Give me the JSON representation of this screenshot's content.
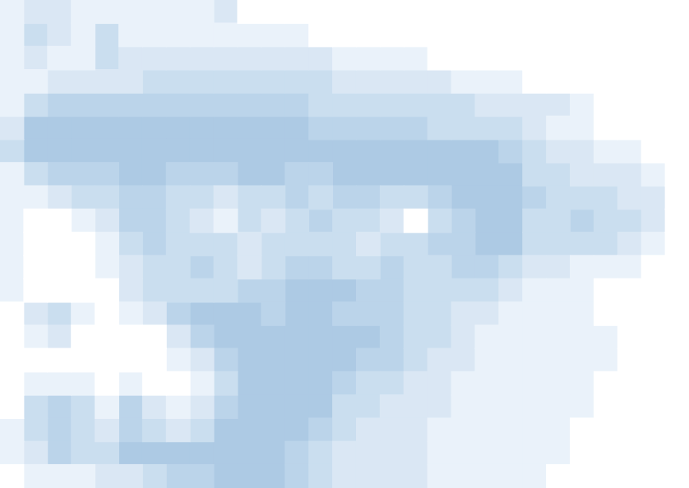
{
  "chart_data": {
    "type": "contour",
    "levels": [
      0,
      1,
      2,
      3,
      4,
      5
    ],
    "colors": [
      "#ffffff",
      "#eaf2fa",
      "#dae7f4",
      "#cadeef",
      "#bbd4ea",
      "#adcae4"
    ],
    "xlim": [
      -0.5,
      28.5
    ],
    "ylim": [
      -0.5,
      20.5
    ],
    "tick_labels": false,
    "cells": [
      [
        1,
        2,
        2,
        1,
        1,
        1,
        1,
        1,
        1,
        2,
        0,
        0,
        0,
        0,
        0,
        0,
        0,
        0,
        0,
        0,
        0,
        0,
        0,
        0,
        0,
        0,
        0,
        0,
        0
      ],
      [
        1,
        3,
        2,
        1,
        3,
        1,
        1,
        1,
        1,
        1,
        1,
        1,
        1,
        0,
        0,
        0,
        0,
        0,
        0,
        0,
        0,
        0,
        0,
        0,
        0,
        0,
        0,
        0,
        0
      ],
      [
        1,
        2,
        1,
        1,
        3,
        2,
        2,
        2,
        2,
        2,
        2,
        2,
        2,
        2,
        1,
        1,
        1,
        1,
        0,
        0,
        0,
        0,
        0,
        0,
        0,
        0,
        0,
        0,
        0
      ],
      [
        1,
        1,
        2,
        2,
        2,
        2,
        3,
        3,
        3,
        3,
        3,
        3,
        3,
        3,
        2,
        2,
        2,
        2,
        2,
        1,
        1,
        1,
        0,
        0,
        0,
        0,
        0,
        0,
        0
      ],
      [
        1,
        3,
        4,
        4,
        4,
        4,
        4,
        4,
        4,
        4,
        4,
        4,
        4,
        3,
        3,
        3,
        3,
        3,
        3,
        3,
        2,
        2,
        2,
        2,
        1,
        0,
        0,
        0,
        0
      ],
      [
        2,
        5,
        5,
        5,
        5,
        5,
        5,
        5,
        5,
        5,
        5,
        5,
        5,
        4,
        4,
        4,
        4,
        4,
        3,
        3,
        3,
        3,
        2,
        1,
        1,
        0,
        0,
        0,
        0
      ],
      [
        3,
        5,
        5,
        5,
        5,
        5,
        5,
        5,
        5,
        5,
        5,
        5,
        5,
        5,
        5,
        5,
        5,
        5,
        5,
        5,
        5,
        4,
        3,
        2,
        2,
        1,
        1,
        0,
        0
      ],
      [
        1,
        3,
        4,
        4,
        4,
        5,
        5,
        4,
        4,
        4,
        5,
        5,
        4,
        4,
        5,
        5,
        5,
        5,
        5,
        5,
        5,
        5,
        3,
        3,
        2,
        2,
        2,
        1,
        0
      ],
      [
        1,
        1,
        2,
        3,
        3,
        4,
        4,
        3,
        3,
        2,
        3,
        3,
        4,
        3,
        4,
        4,
        3,
        3,
        4,
        5,
        5,
        5,
        4,
        3,
        3,
        3,
        2,
        2,
        0
      ],
      [
        1,
        0,
        0,
        1,
        2,
        4,
        4,
        3,
        2,
        1,
        3,
        2,
        3,
        4,
        3,
        3,
        2,
        0,
        3,
        4,
        5,
        5,
        3,
        3,
        4,
        3,
        3,
        2,
        0
      ],
      [
        1,
        0,
        0,
        0,
        1,
        3,
        4,
        3,
        3,
        3,
        2,
        3,
        3,
        3,
        3,
        2,
        3,
        3,
        4,
        4,
        5,
        5,
        3,
        3,
        3,
        3,
        2,
        1,
        0
      ],
      [
        1,
        0,
        0,
        0,
        1,
        2,
        3,
        3,
        4,
        3,
        2,
        3,
        4,
        4,
        3,
        3,
        4,
        3,
        3,
        4,
        4,
        3,
        2,
        2,
        1,
        1,
        1,
        0,
        0
      ],
      [
        1,
        0,
        0,
        0,
        0,
        2,
        3,
        3,
        3,
        3,
        4,
        4,
        5,
        5,
        5,
        4,
        4,
        3,
        3,
        3,
        3,
        2,
        1,
        1,
        1,
        0,
        0,
        0,
        0
      ],
      [
        0,
        2,
        3,
        1,
        0,
        1,
        2,
        4,
        5,
        5,
        5,
        4,
        5,
        5,
        4,
        4,
        4,
        3,
        3,
        2,
        2,
        1,
        1,
        1,
        1,
        0,
        0,
        0,
        0
      ],
      [
        0,
        1,
        2,
        0,
        0,
        0,
        0,
        2,
        4,
        5,
        5,
        5,
        5,
        5,
        5,
        5,
        4,
        3,
        3,
        2,
        1,
        1,
        1,
        1,
        1,
        1,
        0,
        0,
        0
      ],
      [
        0,
        0,
        0,
        0,
        0,
        0,
        0,
        1,
        2,
        4,
        5,
        5,
        5,
        5,
        5,
        4,
        4,
        3,
        2,
        2,
        1,
        1,
        1,
        1,
        1,
        1,
        0,
        0,
        0
      ],
      [
        0,
        1,
        1,
        1,
        0,
        1,
        0,
        0,
        1,
        3,
        5,
        5,
        5,
        5,
        4,
        3,
        3,
        2,
        2,
        1,
        1,
        1,
        1,
        1,
        1,
        0,
        0,
        0,
        0
      ],
      [
        0,
        3,
        4,
        3,
        1,
        4,
        2,
        1,
        2,
        4,
        5,
        5,
        5,
        5,
        3,
        3,
        2,
        2,
        2,
        1,
        1,
        1,
        1,
        1,
        1,
        0,
        0,
        0,
        0
      ],
      [
        1,
        3,
        4,
        3,
        2,
        4,
        3,
        2,
        3,
        5,
        5,
        5,
        5,
        4,
        3,
        2,
        2,
        2,
        1,
        1,
        1,
        1,
        1,
        1,
        0,
        0,
        0,
        0,
        0
      ],
      [
        1,
        2,
        4,
        3,
        3,
        5,
        5,
        5,
        5,
        5,
        5,
        5,
        4,
        3,
        2,
        2,
        2,
        2,
        1,
        1,
        1,
        1,
        1,
        1,
        0,
        0,
        0,
        0,
        0
      ],
      [
        0,
        1,
        1,
        1,
        2,
        2,
        3,
        4,
        4,
        5,
        5,
        5,
        4,
        3,
        2,
        2,
        2,
        2,
        1,
        1,
        1,
        1,
        1,
        0,
        0,
        0,
        0,
        0,
        0
      ]
    ]
  }
}
